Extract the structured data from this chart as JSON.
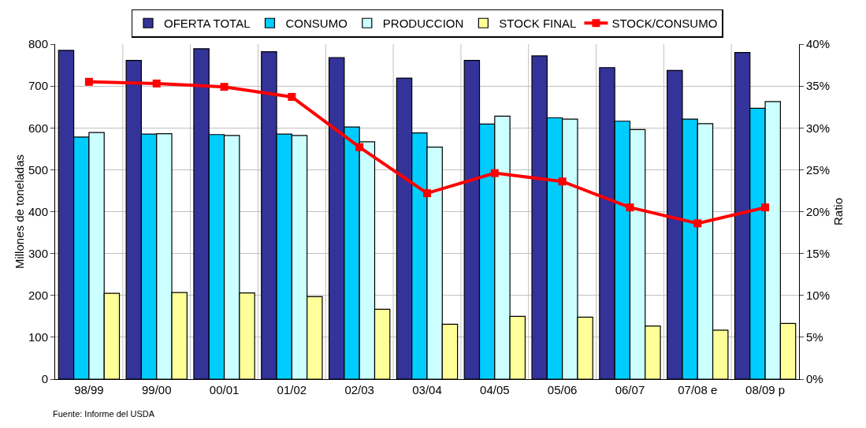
{
  "chart_data": {
    "type": "bar",
    "ylabel": "Millones de toneladas",
    "y2label": "Ratio",
    "categories": [
      "98/99",
      "99/00",
      "00/01",
      "01/02",
      "02/03",
      "03/04",
      "04/05",
      "05/06",
      "06/07",
      "07/08 e",
      "08/09 p"
    ],
    "series": [
      {
        "name": "OFERTA TOTAL",
        "color": "#333399",
        "values": [
          785,
          761,
          789,
          782,
          768,
          719,
          761,
          772,
          744,
          737,
          780
        ]
      },
      {
        "name": "CONSUMO",
        "color": "#00ccff",
        "values": [
          578,
          585,
          584,
          585,
          602,
          588,
          609,
          624,
          616,
          621,
          647
        ]
      },
      {
        "name": "PRODUCCION",
        "color": "#ccffff",
        "values": [
          589,
          586,
          582,
          582,
          567,
          554,
          628,
          621,
          596,
          610,
          663
        ]
      },
      {
        "name": "STOCK FINAL",
        "color": "#ffff99",
        "values": [
          205,
          207,
          206,
          197,
          167,
          131,
          150,
          148,
          127,
          117,
          133
        ]
      },
      {
        "name": "STOCK/CONSUMO",
        "type": "line",
        "axis": "y2",
        "color": "#ff0000",
        "marker": "square",
        "line_style": "solid",
        "values": [
          35.5,
          35.3,
          34.9,
          33.7,
          27.7,
          22.2,
          24.6,
          23.6,
          20.5,
          18.6,
          20.5
        ]
      }
    ],
    "ylim": [
      0,
      800
    ],
    "yticks": [
      0,
      100,
      200,
      300,
      400,
      500,
      600,
      700,
      800
    ],
    "y2lim": [
      0,
      40
    ],
    "y2ticks": [
      {
        "value": 0,
        "label": "0%"
      },
      {
        "value": 5,
        "label": "5%"
      },
      {
        "value": 10,
        "label": "10%"
      },
      {
        "value": 15,
        "label": "15%"
      },
      {
        "value": 20,
        "label": "20%"
      },
      {
        "value": 25,
        "label": "25%"
      },
      {
        "value": 30,
        "label": "30%"
      },
      {
        "value": 35,
        "label": "35%"
      },
      {
        "value": 40,
        "label": "40%"
      }
    ],
    "grid": true,
    "legend": "top",
    "annotations": [
      "Fuente: Informe del USDA"
    ]
  }
}
